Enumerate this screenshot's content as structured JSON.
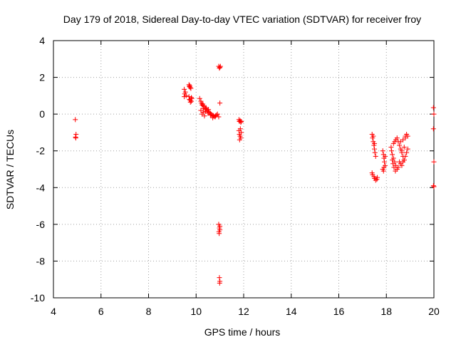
{
  "chart_data": {
    "type": "scatter",
    "title": "Day 179 of 2018, Sidereal Day-to-day VTEC variation (SDTVAR) for receiver froy",
    "xlabel": "GPS time / hours",
    "ylabel": "SDTVAR / TECUs",
    "xlim": [
      4,
      20
    ],
    "ylim": [
      -10,
      4
    ],
    "xticks": [
      4,
      6,
      8,
      10,
      12,
      14,
      16,
      18,
      20
    ],
    "yticks": [
      -10,
      -8,
      -6,
      -4,
      -2,
      0,
      2,
      4
    ],
    "grid": true,
    "marker": "+",
    "color": "#ff0000",
    "series": [
      {
        "name": "SDTVAR",
        "x": [
          4.92,
          4.95,
          4.94,
          4.93,
          9.5,
          9.52,
          9.55,
          9.5,
          9.58,
          9.7,
          9.72,
          9.75,
          9.73,
          9.78,
          9.8,
          9.72,
          9.75,
          9.8,
          9.82,
          9.7,
          9.76,
          10.15,
          10.2,
          10.22,
          10.25,
          10.3,
          10.28,
          10.35,
          10.4,
          10.42,
          10.45,
          10.5,
          10.52,
          10.55,
          10.6,
          10.62,
          10.65,
          10.7,
          10.72,
          10.75,
          10.8,
          10.82,
          10.85,
          10.9,
          10.95,
          10.2,
          10.25,
          10.3,
          10.35,
          10.4,
          10.5,
          10.6,
          10.7,
          10.3,
          10.4,
          10.95,
          10.98,
          11.0,
          11.02,
          11.0,
          10.95,
          10.98,
          11.0,
          10.96,
          11.0,
          10.97,
          10.98,
          11.0,
          10.99,
          11.8,
          11.82,
          11.85,
          11.88,
          11.9,
          11.8,
          11.82,
          11.85,
          11.88,
          11.9,
          11.83,
          11.86,
          17.4,
          17.42,
          17.45,
          17.48,
          17.5,
          17.52,
          17.55,
          17.45,
          17.5,
          17.4,
          17.42,
          17.48,
          17.5,
          17.55,
          17.6,
          17.62,
          17.85,
          17.88,
          17.9,
          17.92,
          17.95,
          17.85,
          17.9,
          17.95,
          17.88,
          18.2,
          18.22,
          18.25,
          18.3,
          18.35,
          18.4,
          18.45,
          18.5,
          18.3,
          18.35,
          18.4,
          18.25,
          18.28,
          18.32,
          18.38,
          18.45,
          18.5,
          18.55,
          18.6,
          18.65,
          18.7,
          18.75,
          18.8,
          18.85,
          18.55,
          18.6,
          18.65,
          18.7,
          18.75,
          18.8,
          18.85,
          18.9,
          18.6,
          18.7,
          18.8,
          18.9,
          18.65,
          18.75,
          19.98,
          20.0,
          19.98,
          20.0,
          19.98,
          20.0
        ],
        "y": [
          -0.3,
          -1.1,
          -1.3,
          -1.25,
          1.35,
          1.1,
          1.2,
          0.95,
          1.0,
          1.6,
          1.5,
          1.45,
          1.55,
          1.4,
          0.9,
          0.8,
          0.75,
          0.7,
          0.85,
          0.95,
          0.65,
          0.85,
          0.7,
          0.6,
          0.5,
          0.45,
          0.55,
          0.4,
          0.3,
          0.35,
          0.2,
          0.15,
          0.25,
          0.1,
          0.05,
          0.0,
          -0.05,
          -0.1,
          -0.08,
          -0.12,
          -0.15,
          -0.1,
          -0.05,
          0.0,
          -0.15,
          0.2,
          0.0,
          0.1,
          -0.1,
          0.25,
          0.05,
          -0.05,
          -0.2,
          0.3,
          0.15,
          2.6,
          2.5,
          2.55,
          2.6,
          0.6,
          -6.0,
          -6.2,
          -6.3,
          -6.4,
          -6.1,
          -6.5,
          -8.9,
          -9.1,
          -9.2,
          -0.3,
          -0.4,
          -0.35,
          -0.45,
          -0.4,
          -0.9,
          -1.1,
          -1.2,
          -1.3,
          -1.0,
          -1.4,
          -0.8,
          -1.1,
          -1.3,
          -1.5,
          -1.7,
          -1.9,
          -2.1,
          -2.3,
          -1.2,
          -1.6,
          -3.2,
          -3.3,
          -3.4,
          -3.5,
          -3.6,
          -3.55,
          -3.45,
          -2.0,
          -2.2,
          -2.4,
          -2.6,
          -2.8,
          -3.0,
          -2.9,
          -2.3,
          -3.1,
          -1.8,
          -2.0,
          -2.2,
          -2.4,
          -2.6,
          -2.8,
          -3.0,
          -2.9,
          -1.6,
          -1.5,
          -1.4,
          -2.5,
          -2.7,
          -2.9,
          -3.1,
          -1.3,
          -1.5,
          -1.7,
          -1.9,
          -2.1,
          -2.3,
          -2.5,
          -1.2,
          -1.1,
          -2.6,
          -2.7,
          -2.8,
          -2.6,
          -2.5,
          -2.3,
          -2.1,
          -1.9,
          -1.5,
          -1.4,
          -1.3,
          -1.2,
          -2.0,
          -1.8,
          0.35,
          0.0,
          -0.8,
          -2.6,
          -3.9,
          -3.95
        ]
      }
    ]
  }
}
